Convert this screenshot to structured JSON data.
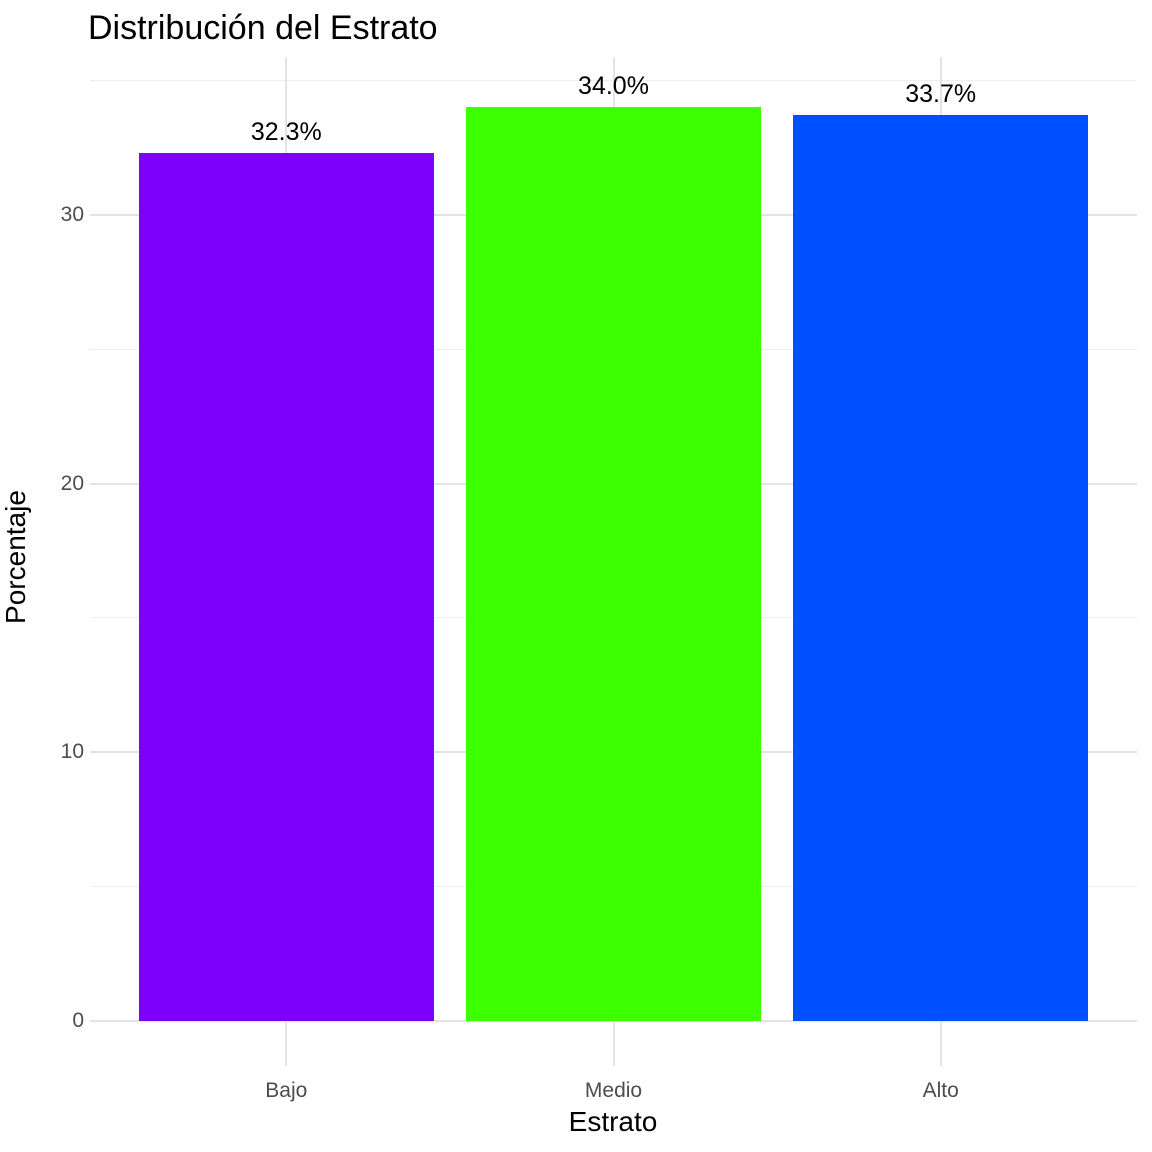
{
  "chart_data": {
    "type": "bar",
    "title": "Distribución del Estrato",
    "xlabel": "Estrato",
    "ylabel": "Porcentaje",
    "categories": [
      "Bajo",
      "Medio",
      "Alto"
    ],
    "values": [
      32.3,
      34.0,
      33.7
    ],
    "bar_labels": [
      "32.3%",
      "34.0%",
      "33.7%"
    ],
    "bar_colors": [
      "#7D00FA",
      "#3CFF00",
      "#0050FF"
    ],
    "y_major_ticks": [
      0,
      10,
      20,
      30
    ],
    "y_minor_ticks": [
      5,
      15,
      25,
      35
    ],
    "ylim": [
      -1.7,
      35.9
    ],
    "grid": true,
    "legend": "none",
    "colors": {
      "background": "#FFFFFF",
      "grid_major": "#E3E3E3",
      "grid_minor": "#EEEEEE",
      "tick_label": "#4D4D4D",
      "text": "#000000"
    }
  }
}
